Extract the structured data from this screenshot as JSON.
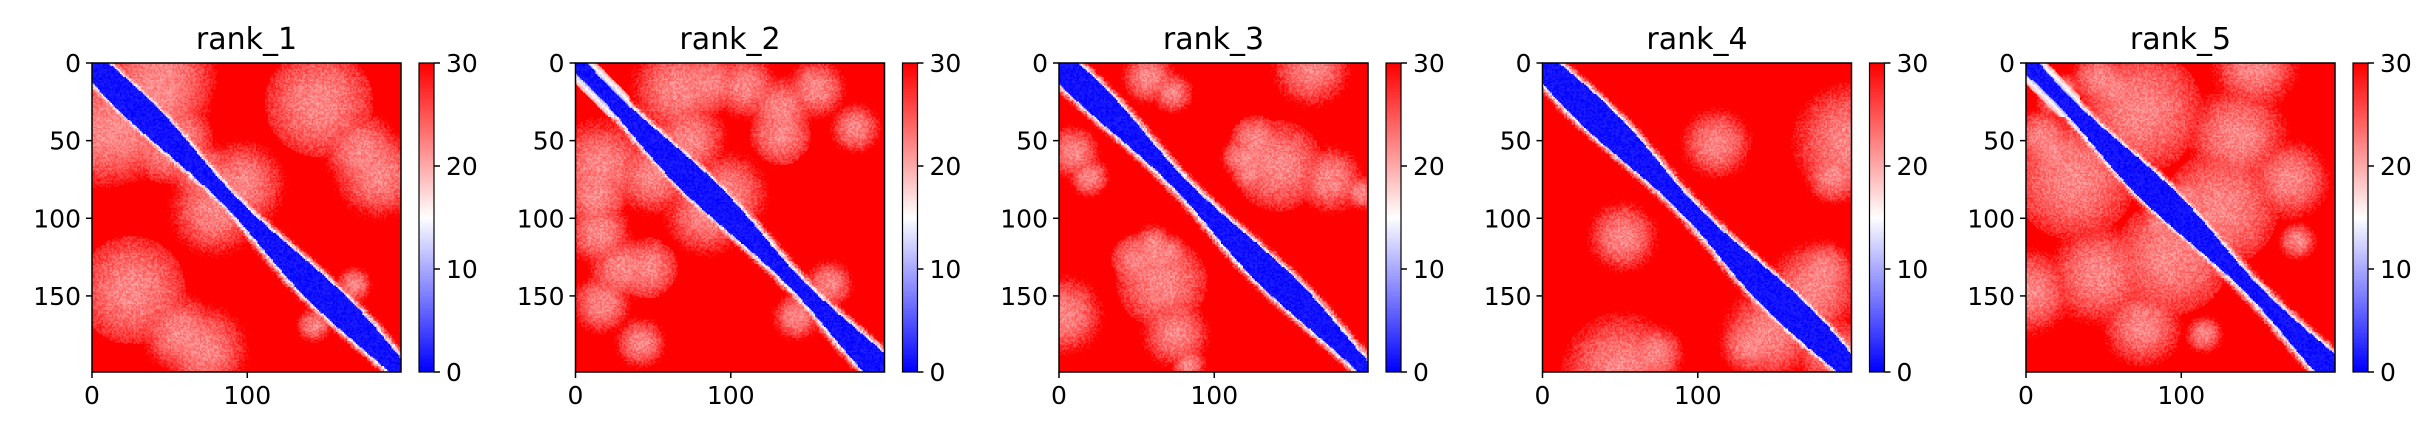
{
  "chart_data": [
    {
      "type": "heatmap",
      "title": "rank_1",
      "size": 200,
      "xlim": [
        0,
        199
      ],
      "ylim": [
        199,
        0
      ],
      "xticks": [
        0,
        100
      ],
      "yticks": [
        0,
        50,
        100,
        150
      ],
      "colorbar": {
        "range": [
          0,
          30
        ],
        "ticks": [
          0,
          10,
          20,
          30
        ],
        "cmap": "bwr"
      },
      "diagonal_value": 0,
      "background_value": 30,
      "band_width": 9,
      "seed": 11
    },
    {
      "type": "heatmap",
      "title": "rank_2",
      "size": 200,
      "xlim": [
        0,
        199
      ],
      "ylim": [
        199,
        0
      ],
      "xticks": [
        0,
        100
      ],
      "yticks": [
        0,
        50,
        100,
        150
      ],
      "colorbar": {
        "range": [
          0,
          30
        ],
        "ticks": [
          0,
          10,
          20,
          30
        ],
        "cmap": "bwr"
      },
      "diagonal_value": 0,
      "background_value": 30,
      "band_width": 9,
      "seed": 23
    },
    {
      "type": "heatmap",
      "title": "rank_3",
      "size": 200,
      "xlim": [
        0,
        199
      ],
      "ylim": [
        199,
        0
      ],
      "xticks": [
        0,
        100
      ],
      "yticks": [
        0,
        50,
        100,
        150
      ],
      "colorbar": {
        "range": [
          0,
          30
        ],
        "ticks": [
          0,
          10,
          20,
          30
        ],
        "cmap": "bwr"
      },
      "diagonal_value": 0,
      "background_value": 30,
      "band_width": 9,
      "seed": 37
    },
    {
      "type": "heatmap",
      "title": "rank_4",
      "size": 200,
      "xlim": [
        0,
        199
      ],
      "ylim": [
        199,
        0
      ],
      "xticks": [
        0,
        100
      ],
      "yticks": [
        0,
        50,
        100,
        150
      ],
      "colorbar": {
        "range": [
          0,
          30
        ],
        "ticks": [
          0,
          10,
          20,
          30
        ],
        "cmap": "bwr"
      },
      "diagonal_value": 0,
      "background_value": 30,
      "band_width": 10,
      "seed": 41
    },
    {
      "type": "heatmap",
      "title": "rank_5",
      "size": 200,
      "xlim": [
        0,
        199
      ],
      "ylim": [
        199,
        0
      ],
      "xticks": [
        0,
        100
      ],
      "yticks": [
        0,
        50,
        100,
        150
      ],
      "colorbar": {
        "range": [
          0,
          30
        ],
        "ticks": [
          0,
          10,
          20,
          30
        ],
        "cmap": "bwr"
      },
      "diagonal_value": 0,
      "background_value": 30,
      "band_width": 9,
      "seed": 53
    }
  ],
  "colors": {
    "low": "#0000ff",
    "mid": "#ffffff",
    "high": "#ff0000",
    "axis": "#000000"
  }
}
